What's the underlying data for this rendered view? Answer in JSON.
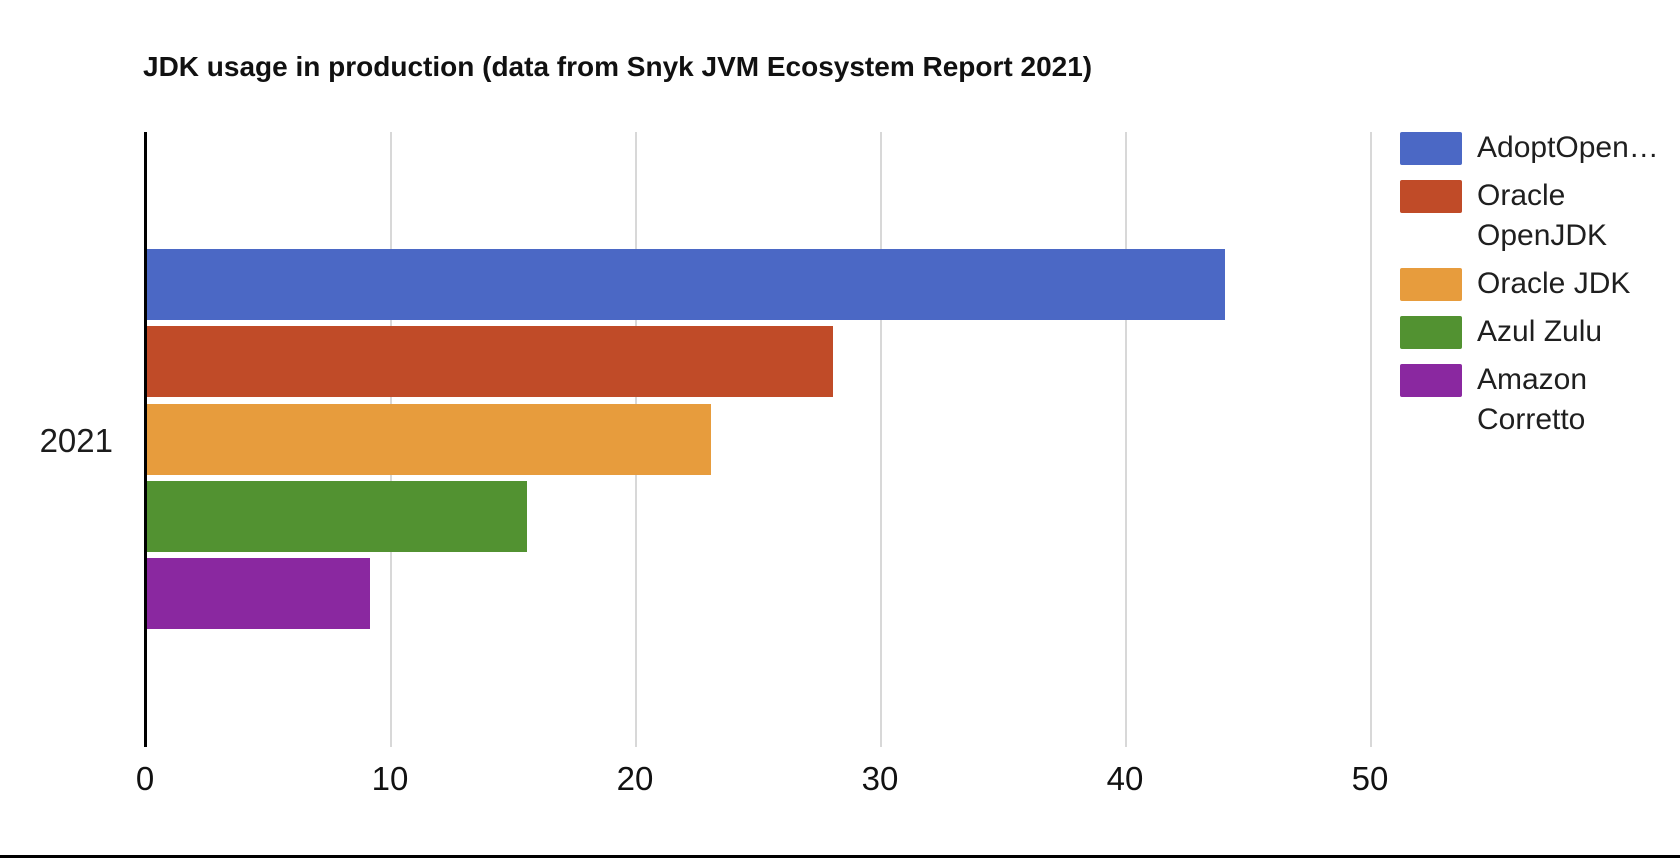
{
  "page": {
    "background": "#ffffff",
    "bottom_border_color": "#000000"
  },
  "chart_data": {
    "type": "bar",
    "orientation": "horizontal",
    "title": "JDK usage in production (data from Snyk JVM Ecosystem Report 2021)",
    "categories": [
      "2021"
    ],
    "series": [
      {
        "name": "AdoptOpen…",
        "value": 44,
        "color": "#4b68c5"
      },
      {
        "name": "Oracle OpenJDK",
        "value": 28,
        "color": "#c04b28"
      },
      {
        "name": "Oracle JDK",
        "value": 23,
        "color": "#e79c3d"
      },
      {
        "name": "Azul Zulu",
        "value": 15.5,
        "color": "#529231"
      },
      {
        "name": "Amazon Corretto",
        "value": 9.1,
        "color": "#8a28a0"
      }
    ],
    "x_ticks": [
      0,
      10,
      20,
      30,
      40,
      50
    ],
    "xlim": [
      0,
      50
    ],
    "xlabel": "",
    "ylabel": "",
    "grid": true,
    "legend_position": "right",
    "axis_color": "#000000",
    "gridline_color": "#d8d8d8",
    "text_color": "#1c1c1c"
  }
}
